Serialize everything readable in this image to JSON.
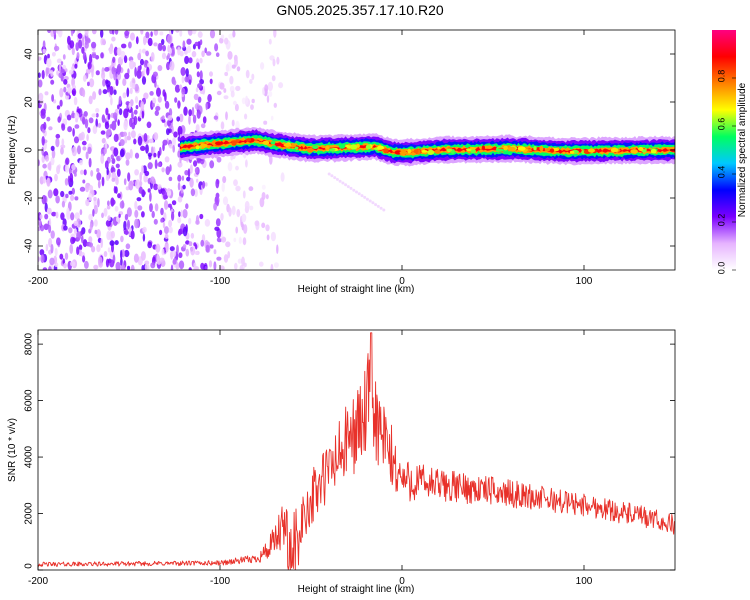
{
  "figure_title": "GN05.2025.357.17.10.R20",
  "chart_data": [
    {
      "type": "heatmap",
      "title": "GN05.2025.357.17.10.R20",
      "xlabel": "Height of straight line (km)",
      "ylabel": "Frequency (Hz)",
      "xlim": [
        -200,
        150
      ],
      "ylim": [
        -50,
        50
      ],
      "x_ticks": [
        -200,
        -100,
        0,
        100
      ],
      "x_tick_labels": [
        "-200",
        "-100",
        "0",
        "100"
      ],
      "y_ticks": [
        -40,
        -20,
        0,
        20,
        40
      ],
      "y_tick_labels": [
        "-40",
        "-20",
        "0",
        "20",
        "40"
      ],
      "colorbar": {
        "label": "Normalized spectral amplitude",
        "range": [
          0,
          1
        ],
        "ticks": [
          0,
          0.2,
          0.4,
          0.6,
          0.8
        ],
        "tick_labels": [
          "0.0",
          "0.2",
          "0.4",
          "0.6",
          "0.8"
        ],
        "colors": [
          "#ffffff",
          "#e6b3ff",
          "#7a00ff",
          "#0000ff",
          "#00c8ff",
          "#00ff60",
          "#ffff00",
          "#ff8000",
          "#ff0000",
          "#ff0080"
        ]
      },
      "noise_region_x": [
        -200,
        -70
      ],
      "signal_band": {
        "x_start": -122,
        "x_end": 150,
        "center_frequency": [
          {
            "x": -122,
            "f": 1
          },
          {
            "x": -110,
            "f": 2
          },
          {
            "x": -95,
            "f": 3
          },
          {
            "x": -80,
            "f": 4
          },
          {
            "x": -70,
            "f": 2.5
          },
          {
            "x": -50,
            "f": 0.5
          },
          {
            "x": -30,
            "f": 1
          },
          {
            "x": -15,
            "f": 1.5
          },
          {
            "x": -5,
            "f": -1
          },
          {
            "x": 5,
            "f": -1
          },
          {
            "x": 20,
            "f": 0
          },
          {
            "x": 60,
            "f": 0.5
          },
          {
            "x": 90,
            "f": -0.5
          },
          {
            "x": 150,
            "f": 0
          }
        ]
      },
      "faint_diagonal_trace": [
        {
          "x": -40,
          "f": -10
        },
        {
          "x": -10,
          "f": -25
        }
      ]
    },
    {
      "type": "line",
      "xlabel": "Height of straight line (km)",
      "ylabel": "SNR (10 * v/v)",
      "xlim": [
        -200,
        150
      ],
      "ylim": [
        0,
        8500
      ],
      "x_ticks": [
        -200,
        -100,
        0,
        100
      ],
      "x_tick_labels": [
        "-200",
        "-100",
        "0",
        "100"
      ],
      "y_ticks": [
        0,
        2000,
        4000,
        6000,
        8000
      ],
      "y_tick_labels": [
        "0",
        "2000",
        "4000",
        "6000",
        "8000"
      ],
      "series": [
        {
          "name": "SNR",
          "color": "#e8312a",
          "envelope": [
            {
              "x": -200,
              "mean": 200,
              "spread": 80
            },
            {
              "x": -150,
              "mean": 220,
              "spread": 80
            },
            {
              "x": -100,
              "mean": 250,
              "spread": 90
            },
            {
              "x": -80,
              "mean": 400,
              "spread": 150
            },
            {
              "x": -72,
              "mean": 800,
              "spread": 500
            },
            {
              "x": -65,
              "mean": 1500,
              "spread": 900
            },
            {
              "x": -60,
              "mean": 1300,
              "spread": 900
            },
            {
              "x": -55,
              "mean": 1800,
              "spread": 900
            },
            {
              "x": -50,
              "mean": 2500,
              "spread": 1000
            },
            {
              "x": -40,
              "mean": 3500,
              "spread": 1200
            },
            {
              "x": -30,
              "mean": 4500,
              "spread": 1400
            },
            {
              "x": -25,
              "mean": 5000,
              "spread": 1500
            },
            {
              "x": -20,
              "mean": 5500,
              "spread": 1700
            },
            {
              "x": -17,
              "mean": 6300,
              "spread": 2000
            },
            {
              "x": -13,
              "mean": 5000,
              "spread": 1600
            },
            {
              "x": -5,
              "mean": 3800,
              "spread": 1200
            },
            {
              "x": 0,
              "mean": 3200,
              "spread": 800
            },
            {
              "x": 20,
              "mean": 3000,
              "spread": 600
            },
            {
              "x": 50,
              "mean": 2800,
              "spread": 500
            },
            {
              "x": 80,
              "mean": 2500,
              "spread": 450
            },
            {
              "x": 110,
              "mean": 2200,
              "spread": 400
            },
            {
              "x": 130,
              "mean": 1900,
              "spread": 400
            },
            {
              "x": 150,
              "mean": 1600,
              "spread": 350
            }
          ],
          "peak": {
            "x": -17,
            "y": 8400
          }
        }
      ]
    }
  ]
}
